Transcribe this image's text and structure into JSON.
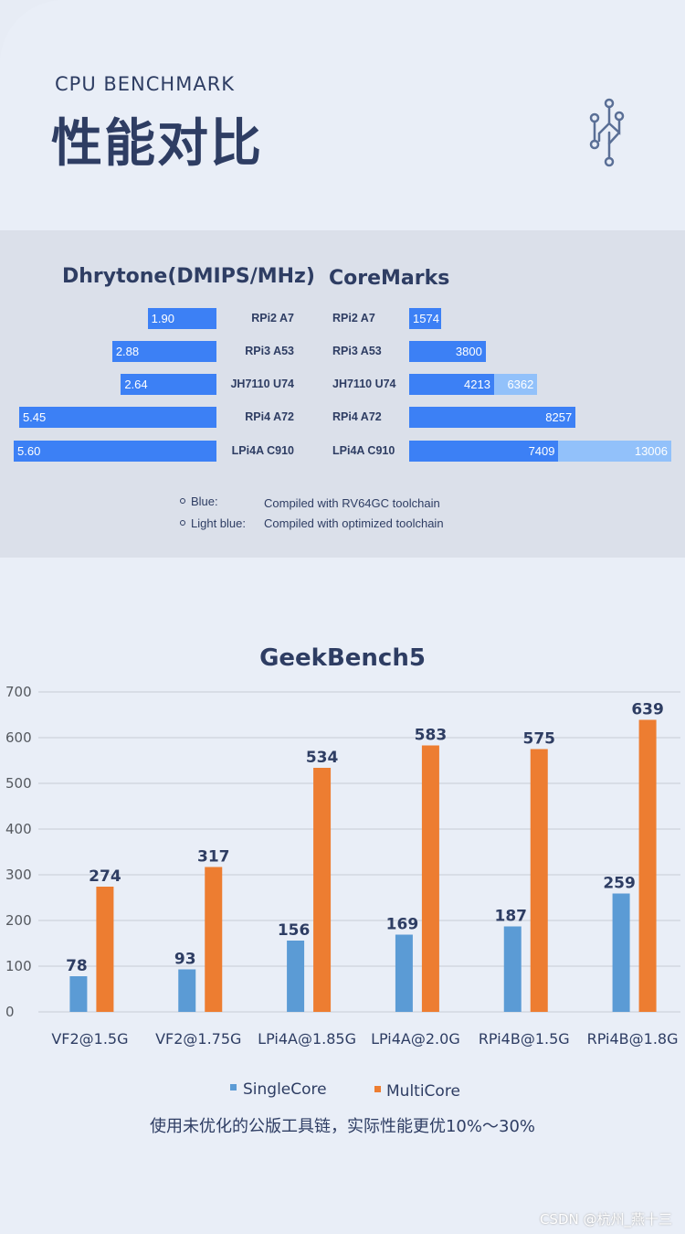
{
  "header": {
    "subtitle": "CPU BENCHMARK",
    "title": "性能对比",
    "icon": "circuit-icon"
  },
  "colors": {
    "blue": "#3c80f5",
    "light_blue": "#92c1fa",
    "single": "#5b9bd5",
    "multi": "#ed7d31",
    "text": "#2e3d63"
  },
  "chart_data": [
    {
      "type": "bar",
      "orientation": "horizontal",
      "title": "Dhrytone(DMIPS/MHz)",
      "categories": [
        "RPi2 A7",
        "RPi3 A53",
        "JH7110 U74",
        "RPi4 A72",
        "LPi4A C910"
      ],
      "values": [
        1.9,
        2.88,
        2.64,
        5.45,
        5.6
      ],
      "labels": [
        "1.90",
        "2.88",
        "2.64",
        "5.45",
        "5.60"
      ]
    },
    {
      "type": "bar",
      "orientation": "horizontal",
      "title": "CoreMarks",
      "categories": [
        "RPi2 A7",
        "RPi3 A53",
        "JH7110 U74",
        "RPi4 A72",
        "LPi4A C910"
      ],
      "series": [
        {
          "name": "Blue",
          "values": [
            1574,
            3800,
            4213,
            8257,
            7409
          ]
        },
        {
          "name": "Light blue",
          "values": [
            null,
            null,
            6362,
            null,
            13006
          ]
        }
      ]
    },
    {
      "type": "bar",
      "title": "GeekBench5",
      "categories": [
        "VF2@1.5G",
        "VF2@1.75G",
        "LPi4A@1.85G",
        "LPi4A@2.0G",
        "RPi4B@1.5G",
        "RPi4B@1.8G"
      ],
      "series": [
        {
          "name": "SingleCore",
          "values": [
            78,
            93,
            156,
            169,
            187,
            259
          ]
        },
        {
          "name": "MultiCore",
          "values": [
            274,
            317,
            534,
            583,
            575,
            639
          ]
        }
      ],
      "ylim": [
        0,
        700
      ],
      "yticks": [
        0,
        100,
        200,
        300,
        400,
        500,
        600,
        700
      ],
      "legend": "bottom"
    }
  ],
  "legend": {
    "blue_key": "Blue:",
    "blue_desc": "Compiled with RV64GC toolchain",
    "light_key": "Light blue:",
    "light_desc": "Compiled with optimized toolchain"
  },
  "note": "使用未优化的公版工具链，实际性能更优10%～30%",
  "watermark": "CSDN @杭州_燕十三"
}
